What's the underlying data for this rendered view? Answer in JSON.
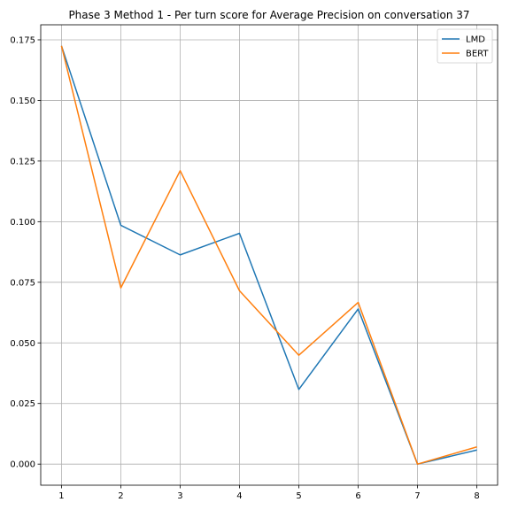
{
  "chart_data": {
    "type": "line",
    "title": "Phase 3 Method 1 - Per turn score for Average Precision on conversation 37",
    "xlabel": "",
    "ylabel": "",
    "x": [
      1,
      2,
      3,
      4,
      5,
      6,
      7,
      8
    ],
    "xlim": [
      0.65,
      8.35
    ],
    "ylim": [
      -0.0087,
      0.1812
    ],
    "xticks": [
      1,
      2,
      3,
      4,
      5,
      6,
      7,
      8
    ],
    "yticks": [
      0.0,
      0.025,
      0.05,
      0.075,
      0.1,
      0.125,
      0.15,
      0.175
    ],
    "ytick_labels": [
      "0.000",
      "0.025",
      "0.050",
      "0.075",
      "0.100",
      "0.125",
      "0.150",
      "0.175"
    ],
    "grid": true,
    "legend_position": "upper right",
    "series": [
      {
        "name": "LMD",
        "color": "#1f77b4",
        "values": [
          0.1725,
          0.0985,
          0.0863,
          0.0952,
          0.0308,
          0.064,
          0.0,
          0.0058
        ]
      },
      {
        "name": "BERT",
        "color": "#ff7f0e",
        "values": [
          0.1725,
          0.0727,
          0.121,
          0.0715,
          0.0449,
          0.0667,
          0.0,
          0.0071
        ]
      }
    ]
  }
}
